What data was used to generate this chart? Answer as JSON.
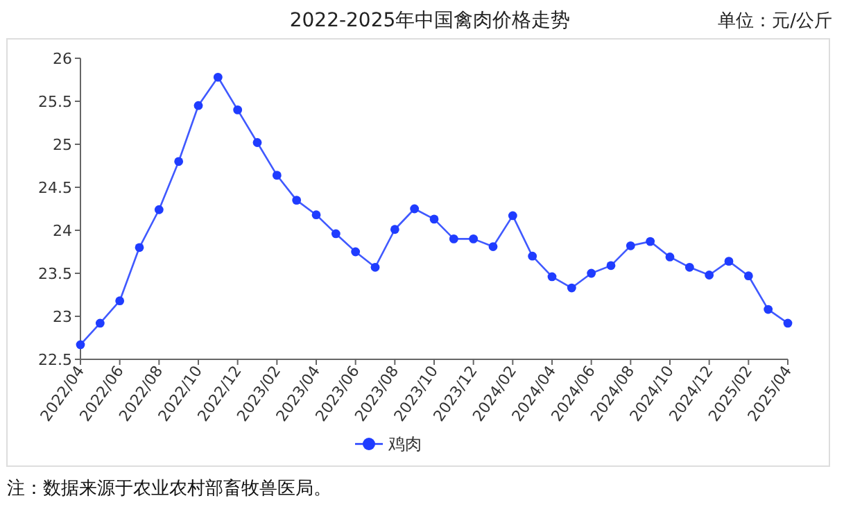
{
  "chart_data": {
    "type": "line",
    "title": "2022-2025年中国禽肉价格走势",
    "annotations": [
      "单位：元/公斤",
      "注：数据来源于农业农村部畜牧兽医局。"
    ],
    "categories": [
      "2022/04",
      null,
      "2022/06",
      null,
      "2022/08",
      null,
      "2022/10",
      null,
      "2022/12",
      null,
      "2023/02",
      null,
      "2023/04",
      null,
      "2023/06",
      null,
      "2023/08",
      null,
      "2023/10",
      null,
      "2023/12",
      null,
      "2024/02",
      null,
      "2024/04",
      null,
      "2024/06",
      null,
      "2024/08",
      null,
      "2024/10",
      null,
      "2024/12",
      null,
      "2025/02",
      null,
      "2025/04"
    ],
    "series": [
      {
        "name": "鸡肉",
        "color": "#1f3cff",
        "values": [
          22.67,
          22.92,
          23.18,
          23.8,
          24.24,
          24.8,
          25.45,
          25.78,
          25.4,
          25.02,
          24.64,
          24.35,
          24.18,
          23.96,
          23.75,
          23.57,
          24.01,
          24.25,
          24.13,
          23.9,
          23.9,
          23.81,
          24.17,
          23.7,
          23.46,
          23.33,
          23.5,
          23.59,
          23.82,
          23.87,
          23.69,
          23.57,
          23.48,
          23.64,
          23.47,
          23.08,
          22.92
        ]
      }
    ],
    "ylim": [
      22.5,
      26
    ],
    "yticks": [
      22.5,
      23,
      23.5,
      24,
      24.5,
      25,
      25.5,
      26
    ],
    "legend": "bottom",
    "marker": "circle"
  }
}
